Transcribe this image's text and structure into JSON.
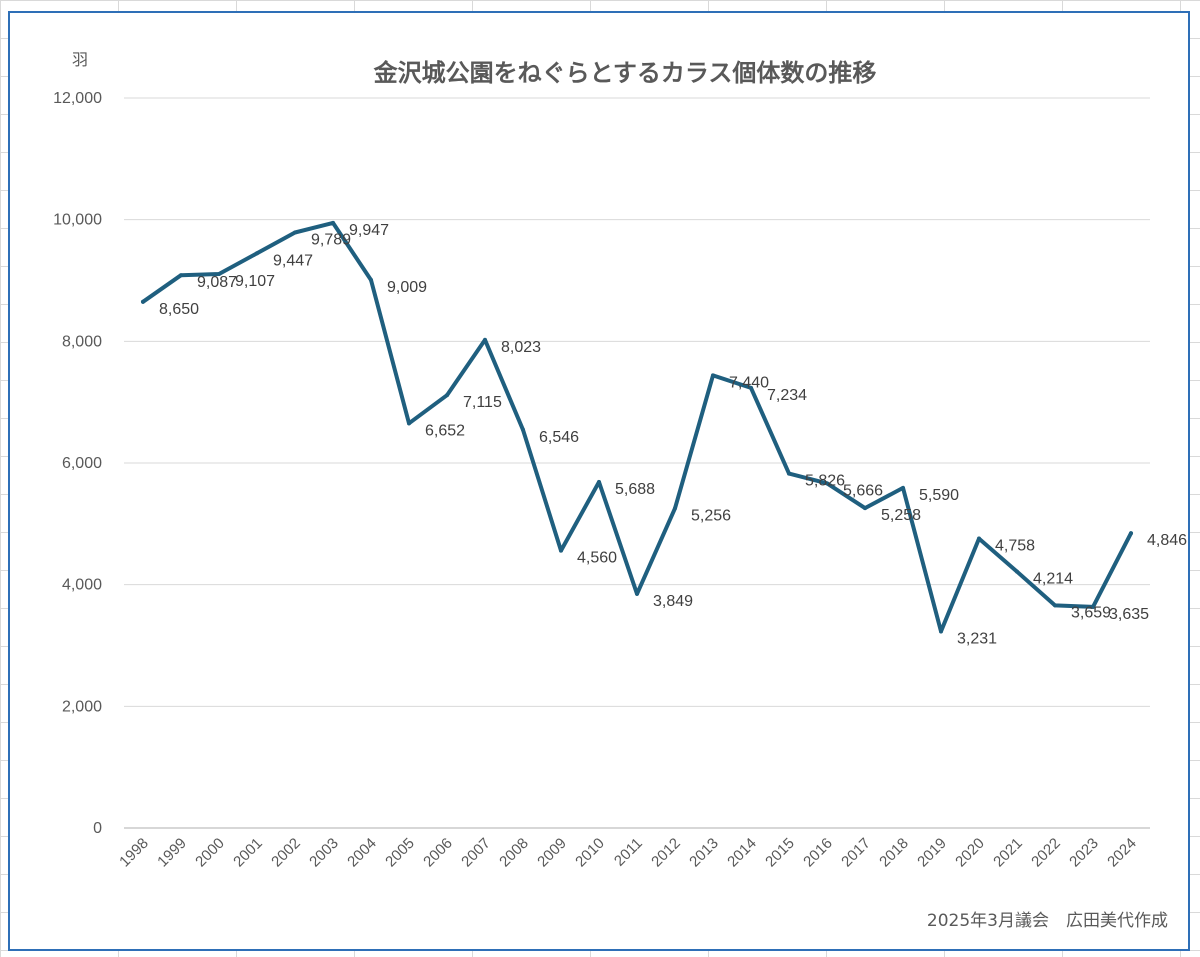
{
  "chart_data": {
    "type": "line",
    "title": "金沢城公園をねぐらとするカラス個体数の推移",
    "unit_label": "羽",
    "footer": "2025年3月議会　広田美代作成",
    "ylim": [
      0,
      12000
    ],
    "ytick_values": [
      0,
      2000,
      4000,
      6000,
      8000,
      10000,
      12000
    ],
    "ytick_labels": [
      "0",
      "2,000",
      "4,000",
      "6,000",
      "8,000",
      "10,000",
      "12,000"
    ],
    "grid": true,
    "legend": "none",
    "line_color": "#1f5f7f",
    "categories": [
      "1998",
      "1999",
      "2000",
      "2001",
      "2002",
      "2003",
      "2004",
      "2005",
      "2006",
      "2007",
      "2008",
      "2009",
      "2010",
      "2011",
      "2012",
      "2013",
      "2014",
      "2015",
      "2016",
      "2017",
      "2018",
      "2019",
      "2020",
      "2021",
      "2022",
      "2023",
      "2024"
    ],
    "series": [
      {
        "values": [
          8650,
          9087,
          9107,
          9447,
          9789,
          9947,
          9009,
          6652,
          7115,
          8023,
          6546,
          4560,
          5688,
          3849,
          5256,
          7440,
          7234,
          5826,
          5666,
          5258,
          5590,
          3231,
          4758,
          4214,
          3659,
          3635,
          4846
        ],
        "data_labels": [
          "8,650",
          "9,087",
          "9,107",
          "9,447",
          "9,789",
          "9,947",
          "9,009",
          "6,652",
          "7,115",
          "8,023",
          "6,546",
          "4,560",
          "5,688",
          "3,849",
          "5,256",
          "7,440",
          "7,234",
          "5,826",
          "5,666",
          "5,258",
          "5,590",
          "3,231",
          "4,758",
          "4,214",
          "3,659",
          "3,635",
          "4,846"
        ]
      }
    ]
  }
}
